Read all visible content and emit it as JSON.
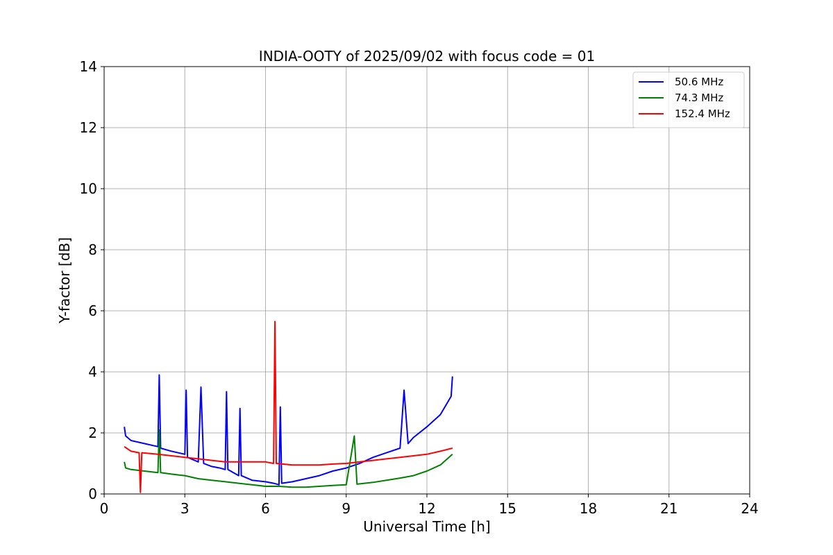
{
  "chart_data": {
    "type": "line",
    "title": "INDIA-OOTY of 2025/09/02 with focus code = 01",
    "xlabel": "Universal Time [h]",
    "ylabel": "Y-factor [dB]",
    "xlim": [
      0,
      24
    ],
    "ylim": [
      0,
      14
    ],
    "xticks": [
      0,
      3,
      6,
      9,
      12,
      15,
      18,
      21,
      24
    ],
    "yticks": [
      0,
      2,
      4,
      6,
      8,
      10,
      12,
      14
    ],
    "grid": true,
    "legend_position": "top-right",
    "series": [
      {
        "name": "50.6 MHz",
        "color": "#0000ff",
        "points": [
          [
            0.75,
            2.2
          ],
          [
            0.8,
            1.9
          ],
          [
            1.0,
            1.75
          ],
          [
            1.5,
            1.65
          ],
          [
            2.0,
            1.55
          ],
          [
            2.05,
            3.9
          ],
          [
            2.1,
            1.5
          ],
          [
            2.5,
            1.4
          ],
          [
            3.0,
            1.3
          ],
          [
            3.05,
            3.4
          ],
          [
            3.1,
            1.2
          ],
          [
            3.5,
            1.05
          ],
          [
            3.6,
            3.5
          ],
          [
            3.7,
            1.0
          ],
          [
            4.0,
            0.9
          ],
          [
            4.3,
            0.85
          ],
          [
            4.5,
            0.8
          ],
          [
            4.55,
            3.35
          ],
          [
            4.6,
            0.8
          ],
          [
            5.0,
            0.6
          ],
          [
            5.05,
            2.8
          ],
          [
            5.1,
            0.6
          ],
          [
            5.5,
            0.45
          ],
          [
            6.0,
            0.4
          ],
          [
            6.3,
            0.35
          ],
          [
            6.5,
            0.3
          ],
          [
            6.55,
            2.85
          ],
          [
            6.6,
            0.35
          ],
          [
            7.0,
            0.4
          ],
          [
            7.5,
            0.5
          ],
          [
            8.0,
            0.6
          ],
          [
            8.5,
            0.75
          ],
          [
            9.0,
            0.85
          ],
          [
            9.5,
            1.0
          ],
          [
            10.0,
            1.2
          ],
          [
            10.5,
            1.35
          ],
          [
            11.0,
            1.5
          ],
          [
            11.15,
            3.4
          ],
          [
            11.3,
            1.65
          ],
          [
            11.5,
            1.85
          ],
          [
            12.0,
            2.2
          ],
          [
            12.5,
            2.6
          ],
          [
            12.9,
            3.2
          ],
          [
            12.95,
            3.85
          ]
        ]
      },
      {
        "name": "74.3 MHz",
        "color": "#008000",
        "points": [
          [
            0.75,
            1.05
          ],
          [
            0.8,
            0.85
          ],
          [
            1.0,
            0.8
          ],
          [
            1.5,
            0.75
          ],
          [
            2.0,
            0.7
          ],
          [
            2.05,
            2.1
          ],
          [
            2.1,
            0.7
          ],
          [
            2.5,
            0.65
          ],
          [
            3.0,
            0.6
          ],
          [
            3.5,
            0.5
          ],
          [
            4.0,
            0.45
          ],
          [
            4.5,
            0.4
          ],
          [
            5.0,
            0.35
          ],
          [
            5.5,
            0.3
          ],
          [
            6.0,
            0.25
          ],
          [
            6.5,
            0.25
          ],
          [
            7.0,
            0.22
          ],
          [
            7.5,
            0.22
          ],
          [
            8.0,
            0.25
          ],
          [
            8.5,
            0.28
          ],
          [
            9.0,
            0.3
          ],
          [
            9.3,
            1.9
          ],
          [
            9.4,
            0.32
          ],
          [
            10.0,
            0.38
          ],
          [
            10.5,
            0.45
          ],
          [
            11.0,
            0.52
          ],
          [
            11.5,
            0.6
          ],
          [
            12.0,
            0.75
          ],
          [
            12.5,
            0.95
          ],
          [
            12.95,
            1.3
          ]
        ]
      },
      {
        "name": "152.4 MHz",
        "color": "#ff0000",
        "points": [
          [
            0.75,
            1.55
          ],
          [
            1.0,
            1.4
          ],
          [
            1.3,
            1.35
          ],
          [
            1.35,
            0.05
          ],
          [
            1.4,
            1.35
          ],
          [
            2.0,
            1.3
          ],
          [
            2.5,
            1.25
          ],
          [
            3.0,
            1.2
          ],
          [
            3.5,
            1.15
          ],
          [
            4.0,
            1.1
          ],
          [
            4.5,
            1.05
          ],
          [
            5.0,
            1.05
          ],
          [
            5.5,
            1.05
          ],
          [
            6.0,
            1.05
          ],
          [
            6.3,
            1.0
          ],
          [
            6.35,
            5.65
          ],
          [
            6.4,
            1.0
          ],
          [
            7.0,
            0.95
          ],
          [
            7.5,
            0.95
          ],
          [
            8.0,
            0.95
          ],
          [
            8.5,
            0.98
          ],
          [
            9.0,
            1.0
          ],
          [
            9.5,
            1.05
          ],
          [
            10.0,
            1.1
          ],
          [
            10.5,
            1.15
          ],
          [
            11.0,
            1.2
          ],
          [
            11.5,
            1.25
          ],
          [
            12.0,
            1.3
          ],
          [
            12.5,
            1.4
          ],
          [
            12.95,
            1.5
          ]
        ]
      }
    ]
  }
}
